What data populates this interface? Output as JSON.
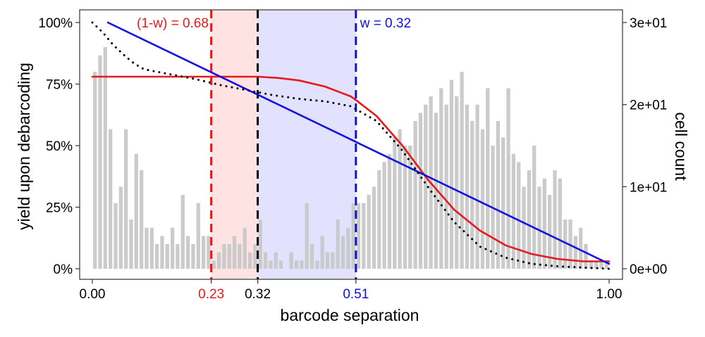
{
  "chart_data": {
    "type": "bar",
    "xlabel": "barcode separation",
    "ylabel_left": "yield upon debarcoding",
    "ylabel_right": "cell count",
    "xlim": [
      0,
      1
    ],
    "ylim_left": [
      0,
      1
    ],
    "ylim_right": [
      0,
      30
    ],
    "x_ticks": [
      {
        "value": 0.0,
        "label": "0.00",
        "color": "#000000"
      },
      {
        "value": 0.23,
        "label": "0.23",
        "color": "#e41a1c"
      },
      {
        "value": 0.32,
        "label": "0.32",
        "color": "#000000"
      },
      {
        "value": 0.51,
        "label": "0.51",
        "color": "#1010e0"
      },
      {
        "value": 1.0,
        "label": "1.00",
        "color": "#000000"
      }
    ],
    "y_left_ticks": [
      {
        "value": 0.0,
        "label": "0%"
      },
      {
        "value": 0.25,
        "label": "25%"
      },
      {
        "value": 0.5,
        "label": "50%"
      },
      {
        "value": 0.75,
        "label": "75%"
      },
      {
        "value": 1.0,
        "label": "100%"
      }
    ],
    "y_right_ticks": [
      {
        "value": 0,
        "label": "0e+00"
      },
      {
        "value": 10,
        "label": "1e+01"
      },
      {
        "value": 20,
        "label": "2e+01"
      },
      {
        "value": 30,
        "label": "3e+01"
      }
    ],
    "histogram": {
      "color": "#c8c8c8",
      "bin_width": 0.01,
      "bin_starts": [
        0.0,
        0.01,
        0.02,
        0.03,
        0.04,
        0.05,
        0.06,
        0.07,
        0.08,
        0.09,
        0.1,
        0.11,
        0.12,
        0.13,
        0.14,
        0.15,
        0.16,
        0.17,
        0.18,
        0.19,
        0.2,
        0.21,
        0.22,
        0.23,
        0.24,
        0.25,
        0.26,
        0.27,
        0.28,
        0.29,
        0.3,
        0.31,
        0.32,
        0.33,
        0.34,
        0.35,
        0.36,
        0.37,
        0.38,
        0.39,
        0.4,
        0.41,
        0.42,
        0.43,
        0.44,
        0.45,
        0.46,
        0.47,
        0.48,
        0.49,
        0.5,
        0.51,
        0.52,
        0.53,
        0.54,
        0.55,
        0.56,
        0.57,
        0.58,
        0.59,
        0.6,
        0.61,
        0.62,
        0.63,
        0.64,
        0.65,
        0.66,
        0.67,
        0.68,
        0.69,
        0.7,
        0.71,
        0.72,
        0.73,
        0.74,
        0.75,
        0.76,
        0.77,
        0.78,
        0.79,
        0.8,
        0.81,
        0.82,
        0.83,
        0.84,
        0.85,
        0.86,
        0.87,
        0.88,
        0.89,
        0.9,
        0.91,
        0.92,
        0.93,
        0.94,
        0.95,
        0.96,
        0.97,
        0.98,
        0.99
      ],
      "counts": [
        24,
        26,
        27,
        17,
        8,
        10,
        17,
        6,
        14,
        12,
        5,
        5,
        3,
        4,
        3,
        5,
        3,
        9,
        4,
        3,
        8,
        4,
        4,
        1,
        2,
        3,
        3,
        4,
        3,
        5,
        2,
        3,
        6,
        2,
        1,
        2,
        1,
        0,
        2,
        1,
        1,
        8,
        3,
        1,
        4,
        2,
        2,
        6,
        4,
        5,
        8,
        8,
        8,
        9,
        10,
        12,
        13,
        14,
        16,
        17,
        15,
        15,
        18,
        19,
        20,
        21,
        19,
        22,
        20,
        23,
        21,
        24,
        20,
        18,
        20,
        17,
        22,
        15,
        18,
        16,
        22,
        14,
        13,
        10,
        12,
        15,
        10,
        11,
        9,
        12,
        11,
        6,
        6,
        4,
        5,
        3,
        1,
        1,
        1,
        1
      ]
    },
    "vlines": [
      {
        "x": 0.23,
        "color": "#e41a1c",
        "style": "dashed"
      },
      {
        "x": 0.32,
        "color": "#000000",
        "style": "dashed"
      },
      {
        "x": 0.51,
        "color": "#1010e0",
        "style": "dashed"
      }
    ],
    "shaded_regions": [
      {
        "from": 0.23,
        "to": 0.32,
        "color": "#ffd6d6"
      },
      {
        "from": 0.32,
        "to": 0.51,
        "color": "#d6d6ff"
      }
    ],
    "series": [
      {
        "style": "solid",
        "color": "#e41a1c",
        "axis": "left",
        "x": [
          0.0,
          0.1,
          0.2,
          0.23,
          0.3,
          0.32,
          0.36,
          0.4,
          0.45,
          0.5,
          0.51,
          0.55,
          0.6,
          0.65,
          0.7,
          0.75,
          0.8,
          0.85,
          0.9,
          0.95,
          1.0
        ],
        "y": [
          0.78,
          0.78,
          0.78,
          0.78,
          0.78,
          0.78,
          0.775,
          0.765,
          0.74,
          0.7,
          0.685,
          0.62,
          0.5,
          0.36,
          0.24,
          0.155,
          0.095,
          0.06,
          0.04,
          0.03,
          0.03
        ]
      },
      {
        "style": "solid",
        "color": "#1010e0",
        "axis": "left",
        "x": [
          0.03,
          1.0
        ],
        "y": [
          1.0,
          0.02
        ]
      },
      {
        "style": "dotted",
        "color": "#000000",
        "axis": "left",
        "x": [
          0.0,
          0.02,
          0.04,
          0.06,
          0.08,
          0.1,
          0.15,
          0.2,
          0.25,
          0.3,
          0.35,
          0.4,
          0.45,
          0.5,
          0.55,
          0.6,
          0.65,
          0.7,
          0.75,
          0.8,
          0.85,
          0.9,
          0.95,
          1.0
        ],
        "y": [
          1.0,
          0.96,
          0.91,
          0.87,
          0.835,
          0.81,
          0.79,
          0.77,
          0.745,
          0.725,
          0.705,
          0.69,
          0.68,
          0.66,
          0.6,
          0.48,
          0.33,
          0.19,
          0.09,
          0.045,
          0.02,
          0.01,
          0.005,
          0.0
        ]
      }
    ],
    "annotations": [
      {
        "text": "(1-w) = 0.68",
        "color": "#e41a1c",
        "x": 0.225,
        "y": 1.0,
        "anchor": "end"
      },
      {
        "text": "w = 0.32",
        "color": "#1010e0",
        "x": 0.518,
        "y": 1.0,
        "anchor": "start"
      }
    ],
    "grid": false
  }
}
